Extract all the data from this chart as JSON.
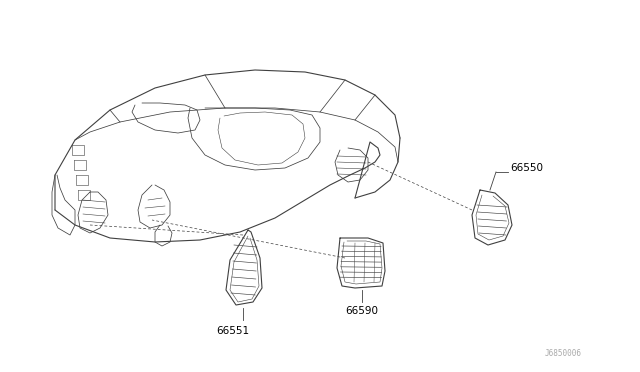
{
  "bg_color": "#ffffff",
  "line_color": "#404040",
  "label_color": "#000000",
  "watermark": "J6850006",
  "fig_width": 6.4,
  "fig_height": 3.72,
  "dpi": 100
}
